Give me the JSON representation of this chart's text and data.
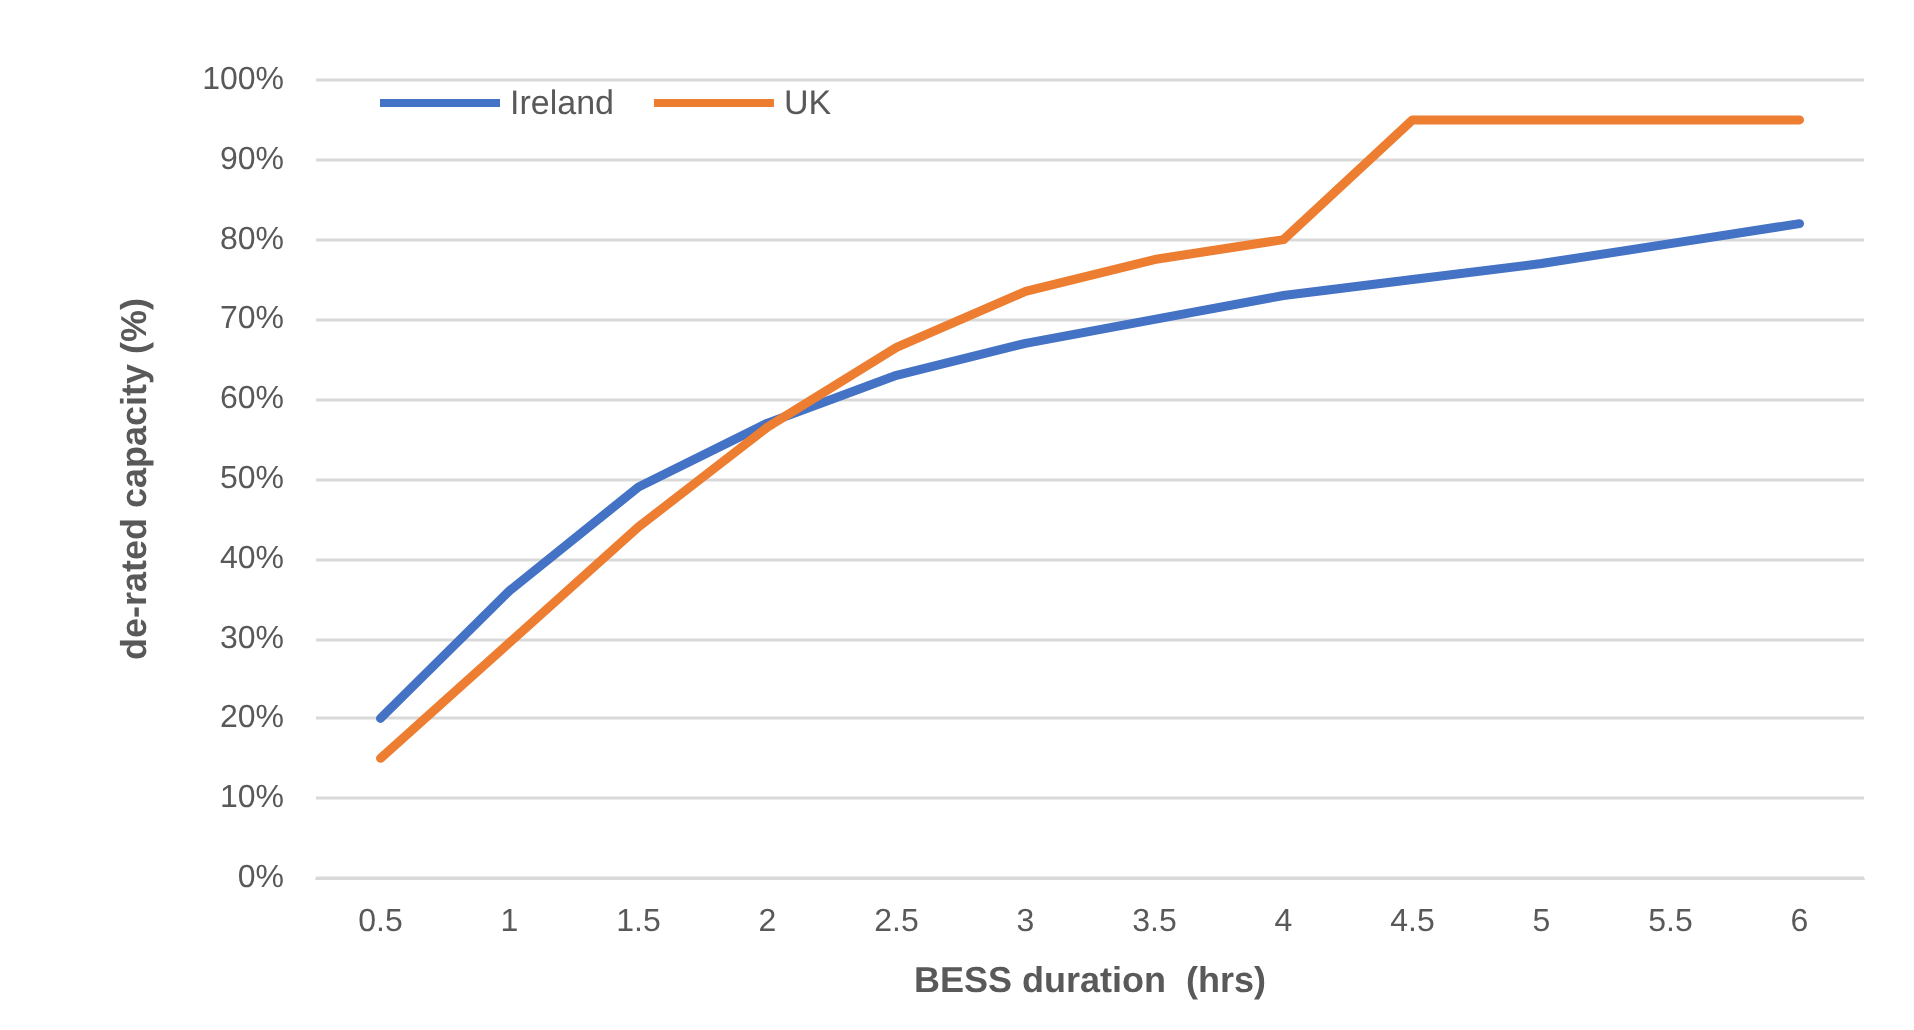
{
  "chart_data": {
    "type": "line",
    "xlabel": "BESS duration  (hrs)",
    "ylabel": "de-rated capacity (%)",
    "categories": [
      "0.5",
      "1",
      "1.5",
      "2",
      "2.5",
      "3",
      "3.5",
      "4",
      "4.5",
      "5",
      "5.5",
      "6"
    ],
    "series": [
      {
        "name": "Ireland",
        "color": "#4472c4",
        "values": [
          20,
          36,
          49,
          57,
          63,
          67,
          70,
          73,
          75,
          77,
          79.5,
          82
        ]
      },
      {
        "name": "UK",
        "color": "#ed7d31",
        "values": [
          15,
          29.5,
          44,
          56.5,
          66.5,
          73.5,
          77.5,
          80,
          95,
          95,
          95,
          95
        ]
      }
    ],
    "ylim": [
      0,
      100
    ],
    "yticks": [
      {
        "value": 0,
        "label": "0%"
      },
      {
        "value": 10,
        "label": "10%"
      },
      {
        "value": 20,
        "label": "20%"
      },
      {
        "value": 30,
        "label": "30%"
      },
      {
        "value": 40,
        "label": "40%"
      },
      {
        "value": 50,
        "label": "50%"
      },
      {
        "value": 60,
        "label": "60%"
      },
      {
        "value": 70,
        "label": "70%"
      },
      {
        "value": 80,
        "label": "80%"
      },
      {
        "value": 90,
        "label": "90%"
      },
      {
        "value": 100,
        "label": "100%"
      }
    ],
    "grid": "y",
    "legend": "top left",
    "marker": "none",
    "line_style": "solid"
  }
}
